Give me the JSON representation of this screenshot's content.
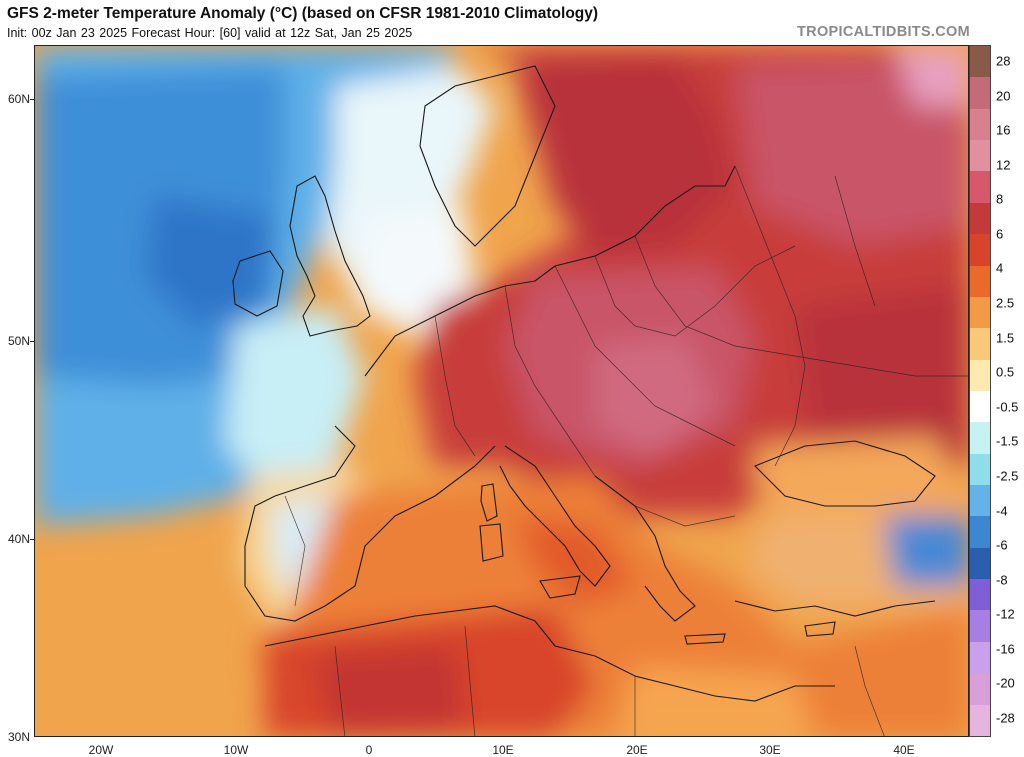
{
  "header": {
    "title": "GFS 2-meter Temperature Anomaly (°C) (based on CFSR 1981-2010 Climatology)",
    "subtitle": "Init: 00z Jan 23 2025   Forecast Hour: [60]   valid at 12z Sat, Jan 25 2025",
    "brand": "TROPICALTIDBITS.COM"
  },
  "axes": {
    "latitude_labels": [
      "60N",
      "50N",
      "40N",
      "30N"
    ],
    "longitude_labels": [
      "20W",
      "10W",
      "0",
      "10E",
      "20E",
      "30E",
      "40E"
    ]
  },
  "colorbar": {
    "labels": [
      "28",
      "20",
      "16",
      "12",
      "8",
      "6",
      "4",
      "2.5",
      "1.5",
      "0.5",
      "-0.5",
      "-1.5",
      "-2.5",
      "-4",
      "-6",
      "-8",
      "-12",
      "-16",
      "-20",
      "-28"
    ],
    "colors": [
      "#8a5a48",
      "#c56a78",
      "#d9808f",
      "#e0909e",
      "#d6586a",
      "#c43a3a",
      "#d8442b",
      "#ea6a2c",
      "#f29a45",
      "#f9c878",
      "#fdeab0",
      "#ffffff",
      "#c7f2f2",
      "#8fdcea",
      "#63b3e8",
      "#3d86d2",
      "#2a5fb0",
      "#7f5fd6",
      "#a77fe3",
      "#c9a0ec",
      "#d99fd8",
      "#e5b5e0"
    ]
  }
}
